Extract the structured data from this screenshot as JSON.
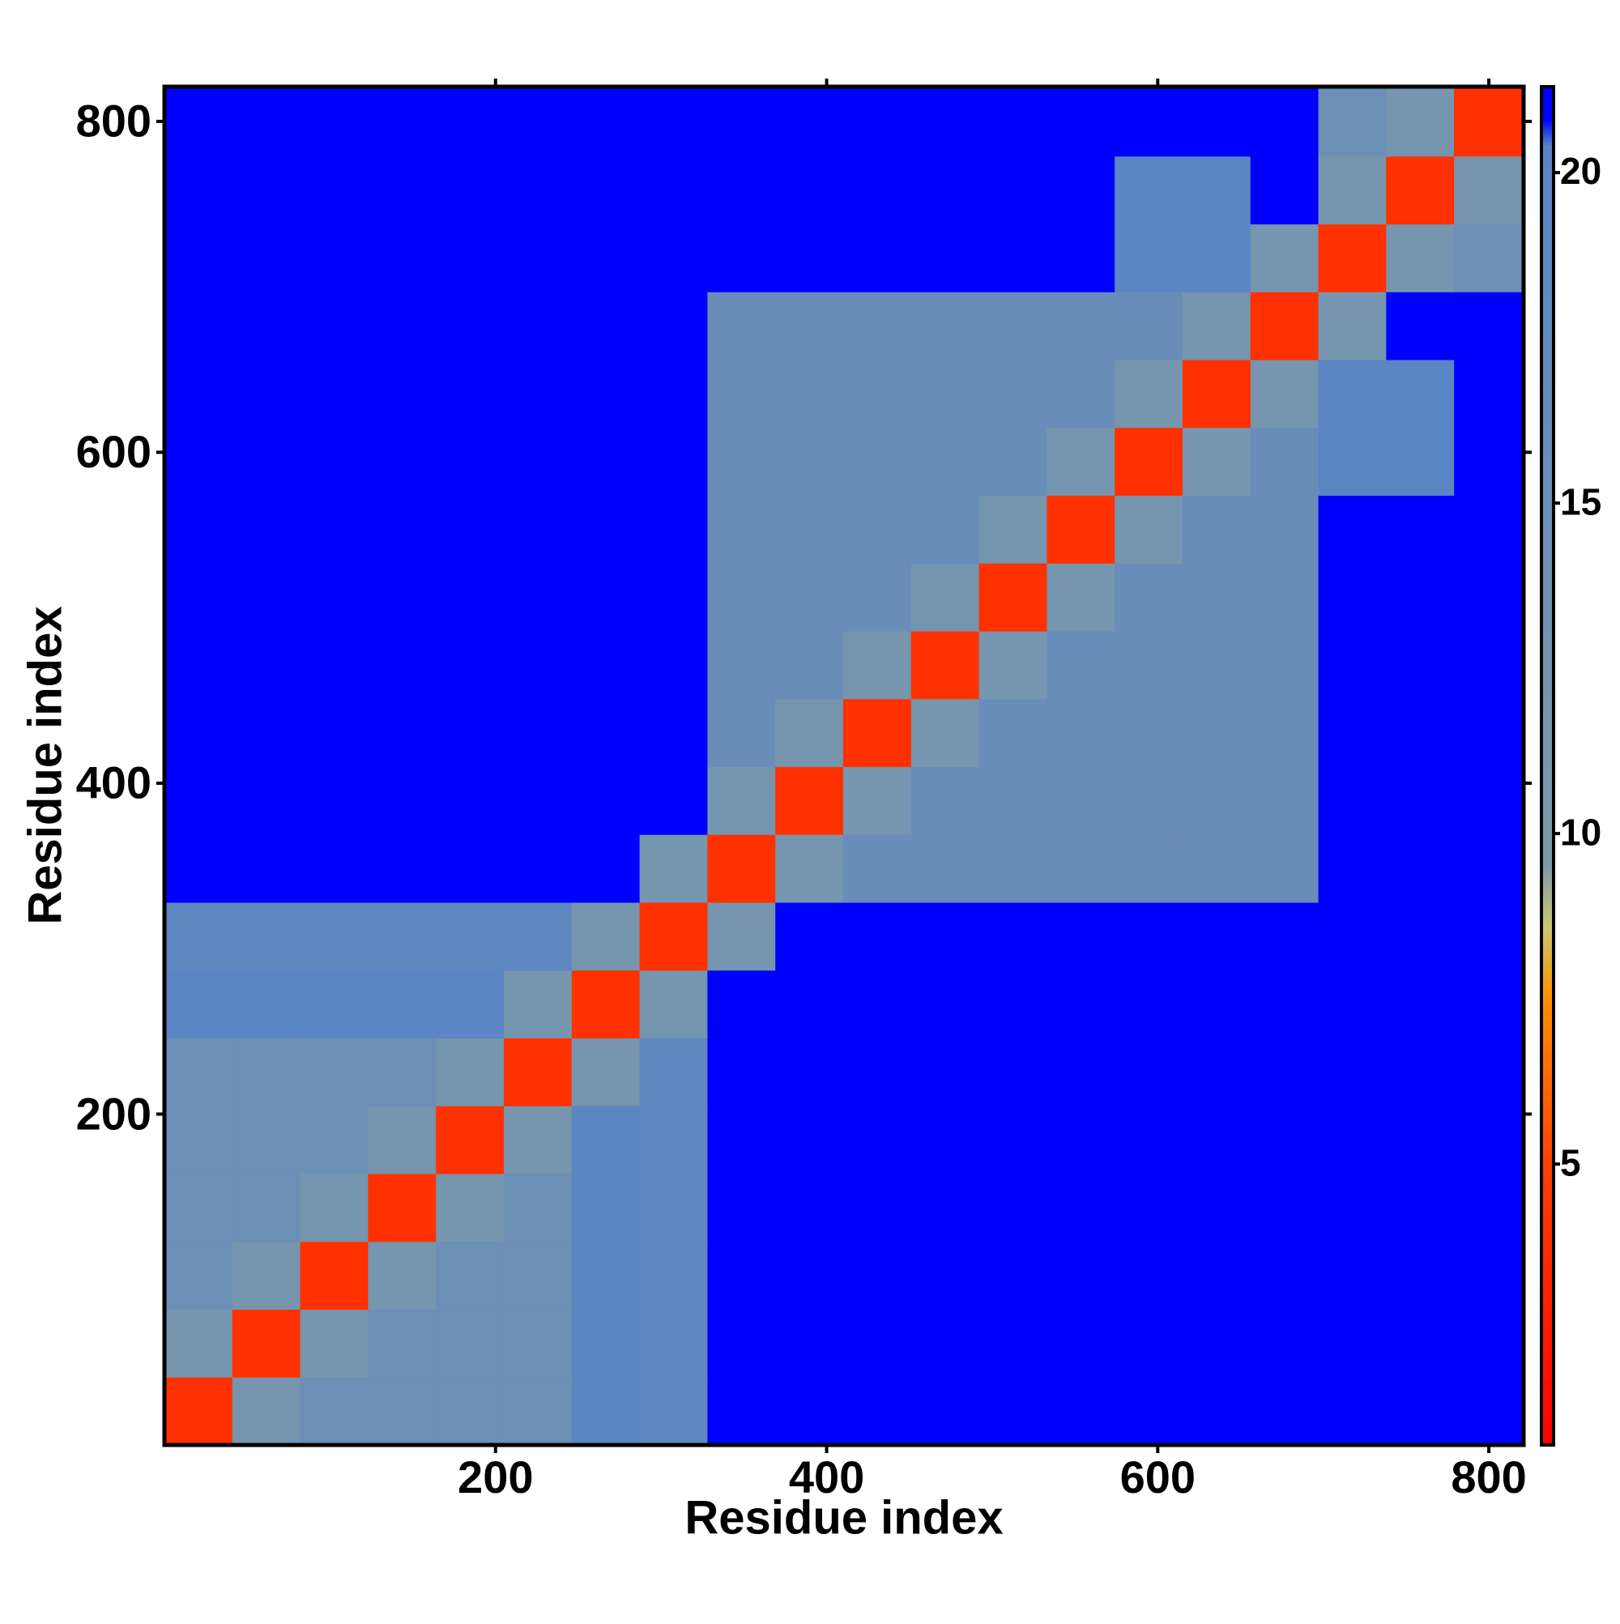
{
  "chart_data": {
    "type": "heatmap",
    "x_label": "Residue index",
    "y_label": "Residue index",
    "bins": [
      0,
      41,
      82,
      123,
      164,
      205,
      246,
      287,
      328,
      369,
      410,
      451,
      492,
      533,
      574,
      615,
      656,
      697,
      738,
      779,
      820
    ],
    "z": [
      [
        4,
        12,
        15,
        15,
        15,
        15,
        20,
        19,
        21,
        21,
        21,
        21,
        21,
        21,
        21,
        21,
        21,
        21,
        21,
        21
      ],
      [
        12,
        4,
        12,
        15,
        15,
        15,
        20,
        19,
        21,
        21,
        21,
        21,
        21,
        21,
        21,
        21,
        21,
        21,
        21,
        21
      ],
      [
        15,
        12,
        4,
        12,
        15,
        15,
        20,
        19,
        21,
        21,
        21,
        21,
        21,
        21,
        21,
        21,
        21,
        21,
        21,
        21
      ],
      [
        15,
        15,
        12,
        4,
        12,
        15,
        20,
        19,
        21,
        21,
        21,
        21,
        21,
        21,
        21,
        21,
        21,
        21,
        21,
        21
      ],
      [
        15,
        15,
        15,
        12,
        4,
        12,
        20,
        19,
        21,
        21,
        21,
        21,
        21,
        21,
        21,
        21,
        21,
        21,
        21,
        21
      ],
      [
        15,
        15,
        15,
        15,
        12,
        4,
        12,
        19,
        21,
        21,
        21,
        21,
        21,
        21,
        21,
        21,
        21,
        21,
        21,
        21
      ],
      [
        20,
        20,
        20,
        20,
        20,
        12,
        4,
        12,
        21,
        21,
        21,
        21,
        21,
        21,
        21,
        21,
        21,
        21,
        21,
        21
      ],
      [
        19,
        19,
        19,
        19,
        19,
        19,
        12,
        4,
        12,
        21,
        21,
        21,
        21,
        21,
        21,
        21,
        21,
        21,
        21,
        21
      ],
      [
        21,
        21,
        21,
        21,
        21,
        21,
        21,
        12,
        4,
        12,
        16,
        16,
        16,
        16,
        16,
        16,
        16,
        21,
        21,
        21
      ],
      [
        21,
        21,
        21,
        21,
        21,
        21,
        21,
        21,
        12,
        4,
        12,
        16,
        16,
        16,
        16,
        16,
        16,
        21,
        21,
        21
      ],
      [
        21,
        21,
        21,
        21,
        21,
        21,
        21,
        21,
        16,
        12,
        4,
        12,
        16,
        16,
        16,
        16,
        16,
        21,
        21,
        21
      ],
      [
        21,
        21,
        21,
        21,
        21,
        21,
        21,
        21,
        16,
        16,
        12,
        4,
        12,
        16,
        16,
        16,
        16,
        21,
        21,
        21
      ],
      [
        21,
        21,
        21,
        21,
        21,
        21,
        21,
        21,
        16,
        16,
        16,
        12,
        4,
        12,
        16,
        16,
        16,
        21,
        21,
        21
      ],
      [
        21,
        21,
        21,
        21,
        21,
        21,
        21,
        21,
        16,
        16,
        16,
        16,
        12,
        4,
        12,
        16,
        16,
        21,
        21,
        21
      ],
      [
        21,
        21,
        21,
        21,
        21,
        21,
        21,
        21,
        16,
        16,
        16,
        16,
        16,
        12,
        4,
        12,
        16,
        20,
        20,
        21
      ],
      [
        21,
        21,
        21,
        21,
        21,
        21,
        21,
        21,
        16,
        16,
        16,
        16,
        16,
        16,
        12,
        4,
        12,
        20,
        20,
        21
      ],
      [
        21,
        21,
        21,
        21,
        21,
        21,
        21,
        21,
        16,
        16,
        16,
        16,
        16,
        16,
        16,
        12,
        4,
        12,
        21,
        21
      ],
      [
        21,
        21,
        21,
        21,
        21,
        21,
        21,
        21,
        21,
        21,
        21,
        21,
        21,
        21,
        20,
        20,
        12,
        4,
        12,
        15
      ],
      [
        21,
        21,
        21,
        21,
        21,
        21,
        21,
        21,
        21,
        21,
        21,
        21,
        21,
        21,
        20,
        20,
        21,
        12,
        4,
        12
      ],
      [
        21,
        21,
        21,
        21,
        21,
        21,
        21,
        21,
        21,
        21,
        21,
        21,
        21,
        21,
        21,
        21,
        21,
        15,
        12,
        4
      ]
    ],
    "xlim": [
      0,
      821
    ],
    "ylim": [
      0,
      821
    ],
    "xticks": [
      200,
      400,
      600,
      800
    ],
    "yticks": [
      200,
      400,
      600,
      800
    ],
    "clim": [
      0.75,
      21.3
    ],
    "cticks": [
      5,
      10,
      15,
      20
    ],
    "colorscale": [
      [
        0.75,
        "#ff0000"
      ],
      [
        5,
        "#ff4000"
      ],
      [
        7.5,
        "#ff9000"
      ],
      [
        8.6,
        "#c8c870"
      ],
      [
        9.5,
        "#7e9aa8"
      ],
      [
        20.4,
        "#5a84c4"
      ],
      [
        20.8,
        "#0000ff"
      ],
      [
        21.3,
        "#0000ff"
      ]
    ]
  }
}
